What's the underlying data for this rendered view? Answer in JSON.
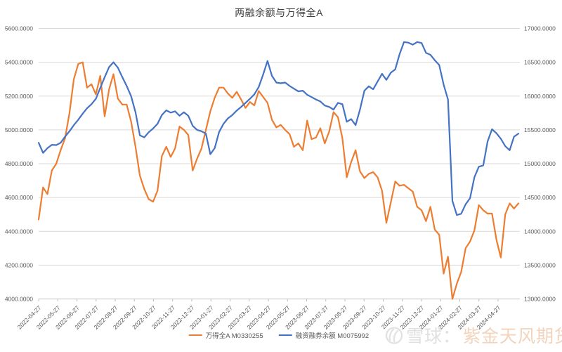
{
  "chart_data": {
    "type": "line",
    "title": "两融余额与万得全A",
    "legend_position": "bottom-center",
    "grid": "horizontal-only",
    "colors": {
      "gridline": "#d9d9d9",
      "axis_line": "#bfbfbf",
      "axis_text": "#595959",
      "title_text": "#3f3f3f"
    },
    "left_axis": {
      "min": 4000,
      "max": 5600,
      "step": 200,
      "tick_labels": [
        "5600.0000",
        "5400.0000",
        "5200.0000",
        "5000.0000",
        "4800.0000",
        "4600.0000",
        "4400.0000",
        "4200.0000",
        "4000.0000"
      ]
    },
    "right_axis": {
      "min": 13000,
      "max": 17000,
      "step": 500,
      "tick_labels": [
        "17000.0000",
        "16500.0000",
        "16000.0000",
        "15500.0000",
        "15000.0000",
        "14500.0000",
        "14000.0000",
        "13500.0000",
        "13000.0000"
      ]
    },
    "x_tick_labels": [
      "2022-04-27",
      "2022-05-27",
      "2022-06-27",
      "2022-07-27",
      "2022-08-27",
      "2022-09-27",
      "2022-10-27",
      "2022-11-27",
      "2022-12-27",
      "2023-01-27",
      "2023-02-27",
      "2023-03-27",
      "2023-04-27",
      "2023-05-27",
      "2023-06-27",
      "2023-07-27",
      "2023-08-27",
      "2023-09-27",
      "2023-10-27",
      "2023-11-27",
      "2023-12-27",
      "2024-01-27",
      "2024-02-27",
      "2024-03-27",
      "2024-04-27"
    ],
    "x_sampling": "weekly from 2022-04-27 to 2024-05-29",
    "series": [
      {
        "name": "万得全A M0330255",
        "axis": "left",
        "color": "#ED7D31",
        "values": [
          4470,
          4660,
          4620,
          4760,
          4800,
          4880,
          4950,
          5100,
          5300,
          5390,
          5400,
          5250,
          5270,
          5210,
          5320,
          5080,
          5240,
          5330,
          5185,
          5150,
          5150,
          5050,
          4900,
          4730,
          4650,
          4590,
          4575,
          4640,
          4845,
          4900,
          4840,
          4890,
          5020,
          5000,
          4970,
          4760,
          4830,
          4890,
          5000,
          5110,
          5190,
          5250,
          5250,
          5215,
          5190,
          5225,
          5180,
          5130,
          5165,
          5145,
          5230,
          5195,
          5160,
          5060,
          5015,
          5030,
          5000,
          4975,
          4900,
          4920,
          4880,
          5055,
          4945,
          4955,
          5010,
          4920,
          4990,
          5105,
          5075,
          4950,
          4720,
          4810,
          4880,
          4755,
          4715,
          4740,
          4750,
          4720,
          4640,
          4450,
          4570,
          4695,
          4670,
          4675,
          4655,
          4635,
          4545,
          4525,
          4460,
          4545,
          4410,
          4380,
          4150,
          4250,
          4000,
          4090,
          4160,
          4300,
          4340,
          4405,
          4555,
          4525,
          4505,
          4505,
          4350,
          4245,
          4500,
          4565,
          4535,
          4565
        ]
      },
      {
        "name": "融资融券余额 M0075992",
        "axis": "right",
        "color": "#4472C4",
        "values": [
          15310,
          15160,
          15230,
          15280,
          15275,
          15310,
          15400,
          15480,
          15570,
          15650,
          15740,
          15820,
          15880,
          15960,
          16120,
          16280,
          16430,
          16500,
          16420,
          16280,
          16150,
          16000,
          15760,
          15420,
          15390,
          15465,
          15520,
          15590,
          15720,
          15790,
          15755,
          15775,
          15710,
          15760,
          15710,
          15560,
          15500,
          15480,
          15445,
          15140,
          15230,
          15470,
          15590,
          15670,
          15720,
          15785,
          15840,
          15900,
          15960,
          16025,
          16135,
          16320,
          16520,
          16300,
          16200,
          16190,
          16200,
          16150,
          16110,
          16070,
          16080,
          16020,
          15985,
          15950,
          15920,
          15860,
          15840,
          15800,
          15900,
          15880,
          15620,
          15660,
          15570,
          15800,
          16080,
          16145,
          16100,
          16215,
          16330,
          16240,
          16345,
          16395,
          16620,
          16800,
          16790,
          16760,
          16800,
          16785,
          16640,
          16610,
          16530,
          16460,
          16170,
          15950,
          14450,
          14240,
          14260,
          14400,
          14490,
          14800,
          14955,
          14975,
          15330,
          15510,
          15450,
          15370,
          15260,
          15200,
          15400,
          15445
        ]
      }
    ]
  },
  "watermark": {
    "icon": "xueqiu-logo",
    "prefix": "雪球：",
    "brand": "紫金天风期货",
    "prefix_color": "#e0e0e0",
    "brand_color": "#f2d4bc"
  }
}
